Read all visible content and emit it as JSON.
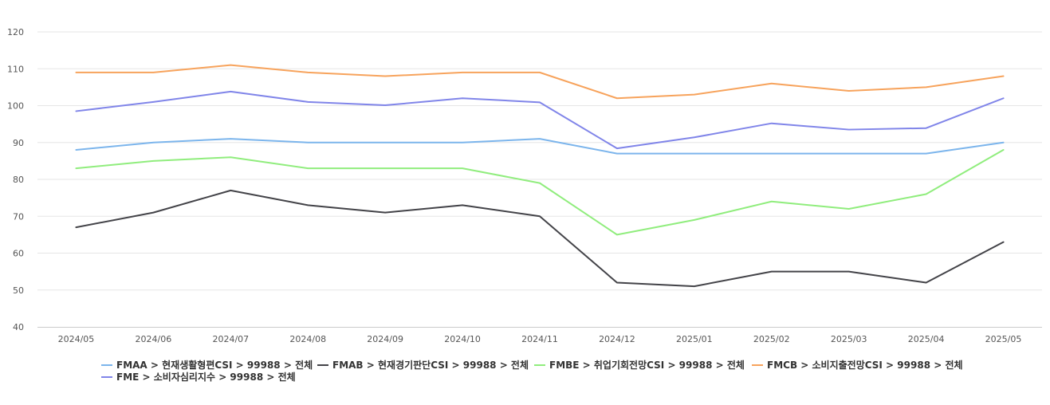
{
  "chart_data": {
    "type": "line",
    "x": [
      "2024/05",
      "2024/06",
      "2024/07",
      "2024/08",
      "2024/09",
      "2024/10",
      "2024/11",
      "2024/12",
      "2025/01",
      "2025/02",
      "2025/03",
      "2025/04",
      "2025/05"
    ],
    "ylim": [
      40,
      120
    ],
    "yticks": [
      "120",
      "110",
      "100",
      "90",
      "80",
      "70",
      "60",
      "50",
      "40"
    ],
    "grid": true,
    "legend_position": "bottom",
    "series": [
      {
        "name": "FMAA > 현재생활형편CSI > 99988 > 전체",
        "color": "#7cb5ec",
        "values": [
          88,
          90,
          91,
          90,
          90,
          90,
          91,
          87,
          87,
          87,
          87,
          87,
          90
        ]
      },
      {
        "name": "FMAB > 현재경기판단CSI > 99988 > 전체",
        "color": "#434348",
        "values": [
          67,
          71,
          77,
          73,
          71,
          73,
          70,
          52,
          51,
          55,
          55,
          52,
          63
        ]
      },
      {
        "name": "FMBE > 취업기회전망CSI > 99988 > 전체",
        "color": "#90ed7d",
        "values": [
          83,
          85,
          86,
          83,
          83,
          83,
          79,
          65,
          69,
          74,
          72,
          76,
          88
        ]
      },
      {
        "name": "FMCB > 소비지출전망CSI > 99988 > 전체",
        "color": "#f7a35c",
        "values": [
          109,
          109,
          111,
          109,
          108,
          109,
          109,
          102,
          103,
          106,
          104,
          105,
          108
        ]
      },
      {
        "name": "FME > 소비자심리지수 > 99988 > 전체",
        "color": "#8085e9",
        "values": [
          98.5,
          101,
          103.8,
          101,
          100.1,
          102,
          100.9,
          88.4,
          91.4,
          95.2,
          93.5,
          93.9,
          102
        ]
      }
    ]
  }
}
